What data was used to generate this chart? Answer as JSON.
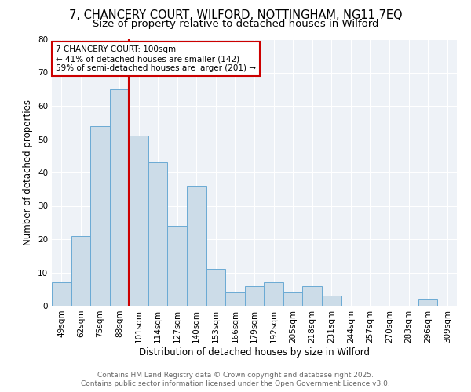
{
  "title_line1": "7, CHANCERY COURT, WILFORD, NOTTINGHAM, NG11 7EQ",
  "title_line2": "Size of property relative to detached houses in Wilford",
  "xlabel": "Distribution of detached houses by size in Wilford",
  "ylabel": "Number of detached properties",
  "categories": [
    "49sqm",
    "62sqm",
    "75sqm",
    "88sqm",
    "101sqm",
    "114sqm",
    "127sqm",
    "140sqm",
    "153sqm",
    "166sqm",
    "179sqm",
    "192sqm",
    "205sqm",
    "218sqm",
    "231sqm",
    "244sqm",
    "257sqm",
    "270sqm",
    "283sqm",
    "296sqm",
    "309sqm"
  ],
  "values": [
    7,
    21,
    54,
    65,
    51,
    43,
    24,
    36,
    11,
    4,
    6,
    7,
    4,
    6,
    3,
    0,
    0,
    0,
    0,
    2,
    0
  ],
  "bar_color": "#ccdce8",
  "bar_edge_color": "#6aaad4",
  "ref_line_x": 3.5,
  "ref_line_label": "7 CHANCERY COURT: 100sqm",
  "annotation_line1": "← 41% of detached houses are smaller (142)",
  "annotation_line2": "59% of semi-detached houses are larger (201) →",
  "annotation_box_facecolor": "#ffffff",
  "annotation_box_edgecolor": "#cc0000",
  "ref_line_color": "#cc0000",
  "ylim": [
    0,
    80
  ],
  "yticks": [
    0,
    10,
    20,
    30,
    40,
    50,
    60,
    70,
    80
  ],
  "background_color": "#eef2f7",
  "footer_line1": "Contains HM Land Registry data © Crown copyright and database right 2025.",
  "footer_line2": "Contains public sector information licensed under the Open Government Licence v3.0.",
  "title_fontsize": 10.5,
  "subtitle_fontsize": 9.5,
  "axis_label_fontsize": 8.5,
  "tick_fontsize": 7.5,
  "annotation_fontsize": 7.5,
  "footer_fontsize": 6.5
}
